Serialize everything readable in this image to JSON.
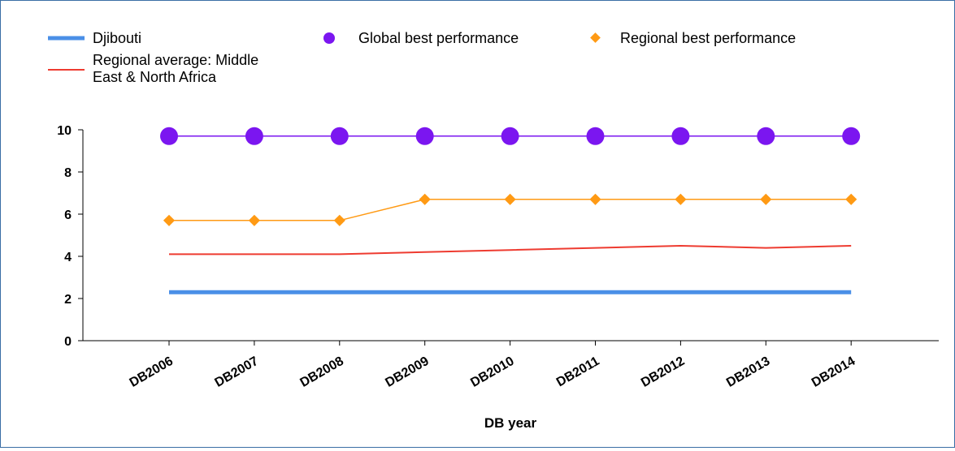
{
  "chart_data": {
    "type": "line",
    "xlabel": "DB year",
    "ylabel": "",
    "ylim": [
      0,
      10
    ],
    "yticks": [
      0,
      2,
      4,
      6,
      8,
      10
    ],
    "legend_position": "top",
    "categories": [
      "DB2006",
      "DB2007",
      "DB2008",
      "DB2009",
      "DB2010",
      "DB2011",
      "DB2012",
      "DB2013",
      "DB2014"
    ],
    "series": [
      {
        "name": "Djibouti",
        "color": "#4a8fe7",
        "marker": "none",
        "values": [
          2.3,
          2.3,
          2.3,
          2.3,
          2.3,
          2.3,
          2.3,
          2.3,
          2.3
        ]
      },
      {
        "name": "Global best performance",
        "color": "#7b16f0",
        "marker": "circle",
        "values": [
          9.7,
          9.7,
          9.7,
          9.7,
          9.7,
          9.7,
          9.7,
          9.7,
          9.7
        ]
      },
      {
        "name": "Regional best performance",
        "color": "#ff9a14",
        "marker": "diamond",
        "values": [
          5.7,
          5.7,
          5.7,
          6.7,
          6.7,
          6.7,
          6.7,
          6.7,
          6.7
        ]
      },
      {
        "name": "Regional average: Middle East & North Africa",
        "color": "#ee3b30",
        "marker": "none",
        "values": [
          4.1,
          4.1,
          4.1,
          4.2,
          4.3,
          4.4,
          4.5,
          4.4,
          4.5
        ]
      }
    ]
  },
  "legend": {
    "djibouti": "Djibouti",
    "global": "Global best performance",
    "regional_best": "Regional best performance",
    "regional_avg_line1": "Regional average: Middle",
    "regional_avg_line2": "East & North Africa"
  }
}
